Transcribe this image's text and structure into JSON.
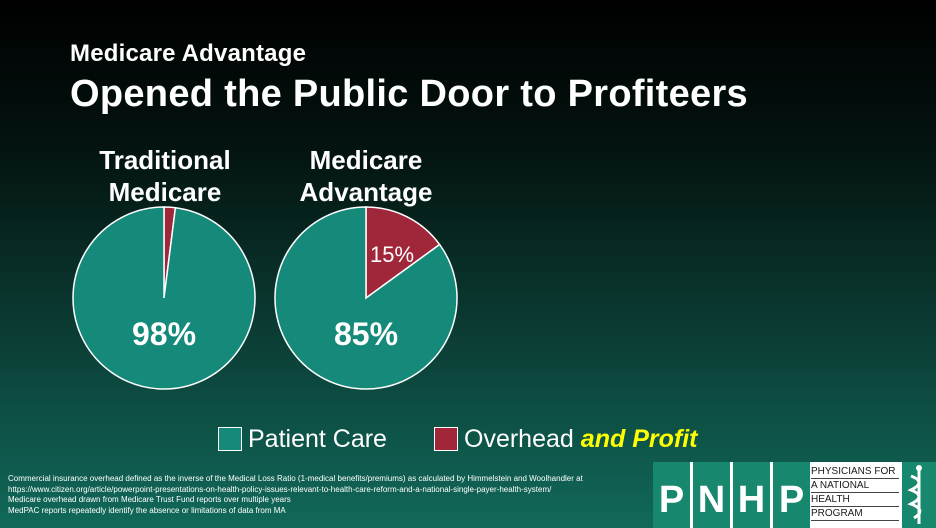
{
  "header": {
    "subtitle": "Medicare Advantage",
    "title": "Opened the Public Door to Profiteers"
  },
  "colors": {
    "patient_care": "#158a7a",
    "overhead": "#a0263a",
    "profit_text": "#ffff00"
  },
  "chart_data": [
    {
      "type": "pie",
      "title": "Traditional Medicare",
      "slices": [
        {
          "name": "Patient Care",
          "value": 98,
          "label": "98%"
        },
        {
          "name": "Overhead and Profit",
          "value": 2,
          "label": ""
        }
      ]
    },
    {
      "type": "pie",
      "title": "Medicare Advantage",
      "slices": [
        {
          "name": "Patient Care",
          "value": 85,
          "label": "85%"
        },
        {
          "name": "Overhead and Profit",
          "value": 15,
          "label": "15%"
        }
      ]
    }
  ],
  "legend": {
    "patient_care": "Patient Care",
    "overhead": "Overhead",
    "profit": "and Profit"
  },
  "footnote": {
    "line1": "Commercial insurance overhead defined as the inverse of the Medical Loss Ratio (1-medical benefits/premiums) as calculated by Himmelstein and Woolhandler at",
    "line2": "https://www.citizen.org/article/powerpoint-presentations-on-health-policy-issues-relevant-to-health-care-reform-and-a-national-single-payer-health-system/",
    "line3": "Medicare overhead drawn from Medicare Trust Fund reports over multiple years",
    "line4": "MedPAC reports repeatedly identify the absence or limitations of data from MA"
  },
  "logo": {
    "letters": [
      "P",
      "N",
      "H",
      "P"
    ],
    "lines": [
      "PHYSICIANS FOR",
      "A NATIONAL",
      "HEALTH",
      "PROGRAM"
    ]
  }
}
